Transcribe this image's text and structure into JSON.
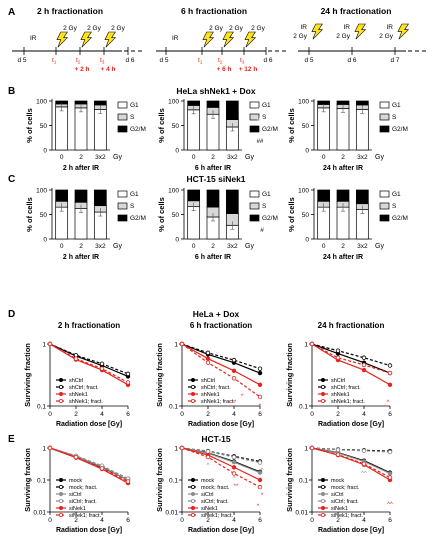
{
  "panelA": {
    "letter": "A",
    "blocks": [
      {
        "title": "2 h fractionation",
        "ir": "IR",
        "day_start": "d 5",
        "day_end": "d 6",
        "gy": [
          "2 Gy",
          "2 Gy",
          "2 Gy"
        ],
        "t": [
          "t",
          "t",
          "t"
        ],
        "subs": [
          "1",
          "2",
          "3"
        ],
        "offsets": [
          "+ 2 h",
          "+ 4 h"
        ]
      },
      {
        "title": "6 h fractionation",
        "ir": "IR",
        "day_start": "d 5",
        "day_end": "d 6",
        "gy": [
          "2 Gy",
          "2 Gy",
          "2 Gy"
        ],
        "t": [
          "t",
          "t",
          "t"
        ],
        "subs": [
          "1",
          "2",
          "3"
        ],
        "offsets": [
          "+ 6 h",
          "+ 12 h"
        ]
      },
      {
        "title": "24 h fractionation",
        "days": [
          "d 5",
          "d 6",
          "d 7"
        ],
        "ir_labels": [
          "IR",
          "IR",
          "IR"
        ],
        "gy": [
          "2 Gy",
          "2 Gy",
          "2 Gy"
        ]
      }
    ]
  },
  "panelB": {
    "letter": "B",
    "title": "HeLa shNek1 + Dox",
    "ylabel": "% of cells",
    "yticks": [
      "0",
      "50",
      "100"
    ],
    "xticks": [
      "0",
      "2",
      "3x2"
    ],
    "unit": "Gy",
    "legend": [
      "G1",
      "S",
      "G2/M"
    ],
    "subtitles": [
      "2 h after IR",
      "6 h after IR",
      "24 h after IR"
    ],
    "marks": [
      "##",
      "##",
      "##",
      "##"
    ]
  },
  "panelC": {
    "letter": "C",
    "title": "HCT-15 siNek1",
    "ylabel": "% of cells",
    "yticks": [
      "0",
      "50",
      "100"
    ],
    "xticks": [
      "0",
      "2",
      "3x2"
    ],
    "unit": "Gy",
    "legend": [
      "G1",
      "S",
      "G2/M"
    ],
    "subtitles": [
      "2 h after IR",
      "6 h after IR",
      "24 h after IR"
    ],
    "marks": [
      "#"
    ]
  },
  "panelD": {
    "letter": "D",
    "title": "HeLa + Dox",
    "ylabel": "Surviving fraction",
    "xlabel": "Radiation dose [Gy]",
    "yticks": [
      "1",
      "0.1"
    ],
    "xticks": [
      "0",
      "2",
      "4",
      "6"
    ],
    "subtitles": [
      "2 h fractionation",
      "6 h fractionation",
      "24 h fractionation"
    ],
    "legend": [
      "shCtrl",
      "shCtrl; fract.",
      "shNek1",
      "shNek1; fract."
    ],
    "marks": [
      "*",
      "**",
      "*",
      "^"
    ]
  },
  "panelE": {
    "letter": "E",
    "title": "HCT-15",
    "ylabel": "Surviving fraction",
    "xlabel": "Radiation dose [Gy]",
    "yticks": [
      "1",
      "0.1",
      "0.01"
    ],
    "xticks": [
      "0",
      "2",
      "4",
      "6"
    ],
    "legend": [
      "mock",
      "mock; fract.",
      "siCtrl",
      "siCtrl; fract.",
      "siNek1",
      "siNek1; fract."
    ],
    "marks": [
      "^",
      "^",
      "**",
      "*",
      "^",
      "*",
      "^^",
      "^^"
    ]
  },
  "colors": {
    "black": "#000000",
    "red": "#e8231d",
    "gray": "#8c8c8c",
    "s_gray": "#d8d8d8",
    "bolt": "#ffe21a"
  },
  "chart_data": [
    {
      "type": "bar",
      "panel": "B",
      "subtitle": "2 h after IR",
      "stacked": true,
      "categories": [
        "0",
        "2",
        "3x2"
      ],
      "ylim": [
        0,
        100
      ],
      "series": [
        {
          "name": "G1",
          "values": [
            88,
            86,
            83
          ]
        },
        {
          "name": "S",
          "values": [
            6,
            8,
            9
          ]
        },
        {
          "name": "G2/M",
          "values": [
            6,
            6,
            8
          ]
        }
      ]
    },
    {
      "type": "bar",
      "panel": "B",
      "subtitle": "6 h after IR",
      "stacked": true,
      "categories": [
        "0",
        "2",
        "3x2"
      ],
      "ylim": [
        0,
        100
      ],
      "series": [
        {
          "name": "G1",
          "values": [
            82,
            73,
            47
          ]
        },
        {
          "name": "S",
          "values": [
            9,
            14,
            15
          ]
        },
        {
          "name": "G2/M",
          "values": [
            9,
            13,
            38
          ]
        }
      ]
    },
    {
      "type": "bar",
      "panel": "B",
      "subtitle": "24 h after IR",
      "stacked": true,
      "categories": [
        "0",
        "2",
        "3x2"
      ],
      "ylim": [
        0,
        100
      ],
      "series": [
        {
          "name": "G1",
          "values": [
            86,
            85,
            83
          ]
        },
        {
          "name": "S",
          "values": [
            7,
            8,
            9
          ]
        },
        {
          "name": "G2/M",
          "values": [
            7,
            7,
            8
          ]
        }
      ]
    },
    {
      "type": "bar",
      "panel": "C",
      "subtitle": "2 h after IR",
      "stacked": true,
      "categories": [
        "0",
        "2",
        "3x2"
      ],
      "ylim": [
        0,
        100
      ],
      "series": [
        {
          "name": "G1",
          "values": [
            65,
            62,
            55
          ]
        },
        {
          "name": "S",
          "values": [
            12,
            13,
            13
          ]
        },
        {
          "name": "G2/M",
          "values": [
            23,
            25,
            32
          ]
        }
      ]
    },
    {
      "type": "bar",
      "panel": "C",
      "subtitle": "6 h after IR",
      "stacked": true,
      "categories": [
        "0",
        "2",
        "3x2"
      ],
      "ylim": [
        0,
        100
      ],
      "series": [
        {
          "name": "G1",
          "values": [
            66,
            45,
            28
          ]
        },
        {
          "name": "S",
          "values": [
            12,
            20,
            24
          ]
        },
        {
          "name": "G2/M",
          "values": [
            22,
            35,
            48
          ]
        }
      ]
    },
    {
      "type": "bar",
      "panel": "C",
      "subtitle": "24 h after IR",
      "stacked": true,
      "categories": [
        "0",
        "2",
        "3x2"
      ],
      "ylim": [
        0,
        100
      ],
      "series": [
        {
          "name": "G1",
          "values": [
            65,
            65,
            60
          ]
        },
        {
          "name": "S",
          "values": [
            12,
            12,
            12
          ]
        },
        {
          "name": "G2/M",
          "values": [
            23,
            23,
            28
          ]
        }
      ]
    },
    {
      "type": "line",
      "panel": "D",
      "subtitle": "2 h fractionation",
      "yscale": "log",
      "ylim": [
        0.1,
        1
      ],
      "x": [
        0,
        2,
        4,
        6
      ],
      "series": [
        {
          "name": "shCtrl",
          "values": [
            1,
            0.64,
            0.45,
            0.3
          ]
        },
        {
          "name": "shCtrl; fract.",
          "values": [
            1,
            0.66,
            0.48,
            0.33
          ]
        },
        {
          "name": "shNek1",
          "values": [
            1,
            0.56,
            0.38,
            0.22
          ]
        },
        {
          "name": "shNek1; fract.",
          "values": [
            1,
            0.58,
            0.4,
            0.24
          ]
        }
      ]
    },
    {
      "type": "line",
      "panel": "D",
      "subtitle": "6 h fractionation",
      "yscale": "log",
      "ylim": [
        0.1,
        1
      ],
      "x": [
        0,
        2,
        4,
        6
      ],
      "series": [
        {
          "name": "shCtrl",
          "values": [
            1,
            0.68,
            0.5,
            0.34
          ]
        },
        {
          "name": "shCtrl; fract.",
          "values": [
            1,
            0.72,
            0.55,
            0.4
          ]
        },
        {
          "name": "shNek1",
          "values": [
            1,
            0.58,
            0.37,
            0.22
          ]
        },
        {
          "name": "shNek1; fract.",
          "values": [
            1,
            0.5,
            0.28,
            0.14
          ]
        }
      ]
    },
    {
      "type": "line",
      "panel": "D",
      "subtitle": "24 h fractionation",
      "yscale": "log",
      "ylim": [
        0.1,
        1
      ],
      "x": [
        0,
        2,
        4,
        6
      ],
      "series": [
        {
          "name": "shCtrl",
          "values": [
            1,
            0.7,
            0.5,
            0.34
          ]
        },
        {
          "name": "shCtrl; fract.",
          "values": [
            1,
            0.78,
            0.6,
            0.45
          ]
        },
        {
          "name": "shNek1",
          "values": [
            1,
            0.55,
            0.38,
            0.22
          ]
        },
        {
          "name": "shNek1; fract.",
          "values": [
            1,
            0.6,
            0.46,
            0.34
          ]
        }
      ]
    },
    {
      "type": "line",
      "panel": "E",
      "subtitle": "2 h fractionation",
      "yscale": "log",
      "ylim": [
        0.01,
        1
      ],
      "x": [
        0,
        2,
        4,
        6
      ],
      "series": [
        {
          "name": "mock",
          "values": [
            1,
            0.55,
            0.25,
            0.1
          ]
        },
        {
          "name": "mock; fract.",
          "values": [
            1,
            0.56,
            0.27,
            0.11
          ]
        },
        {
          "name": "siCtrl",
          "values": [
            1,
            0.55,
            0.26,
            0.1
          ]
        },
        {
          "name": "siCtrl; fract.",
          "values": [
            1,
            0.57,
            0.28,
            0.11
          ]
        },
        {
          "name": "siNek1",
          "values": [
            1,
            0.5,
            0.22,
            0.08
          ]
        },
        {
          "name": "siNek1; fract.",
          "values": [
            1,
            0.52,
            0.23,
            0.09
          ]
        }
      ]
    },
    {
      "type": "line",
      "panel": "E",
      "subtitle": "6 h fractionation",
      "yscale": "log",
      "ylim": [
        0.01,
        1
      ],
      "x": [
        0,
        2,
        4,
        6
      ],
      "series": [
        {
          "name": "mock",
          "values": [
            1,
            0.7,
            0.38,
            0.18
          ]
        },
        {
          "name": "mock; fract.",
          "values": [
            1,
            0.8,
            0.55,
            0.38
          ]
        },
        {
          "name": "siCtrl",
          "values": [
            1,
            0.68,
            0.36,
            0.17
          ]
        },
        {
          "name": "siCtrl; fract.",
          "values": [
            1,
            0.78,
            0.52,
            0.35
          ]
        },
        {
          "name": "siNek1",
          "values": [
            1,
            0.6,
            0.25,
            0.1
          ]
        },
        {
          "name": "siNek1; fract.",
          "values": [
            1,
            0.52,
            0.16,
            0.06
          ]
        }
      ]
    },
    {
      "type": "line",
      "panel": "E",
      "subtitle": "24 h fractionation",
      "yscale": "log",
      "ylim": [
        0.01,
        1
      ],
      "x": [
        0,
        2,
        4,
        6
      ],
      "series": [
        {
          "name": "mock",
          "values": [
            1,
            0.72,
            0.4,
            0.17
          ]
        },
        {
          "name": "mock; fract.",
          "values": [
            1,
            0.9,
            0.85,
            0.8
          ]
        },
        {
          "name": "siCtrl",
          "values": [
            1,
            0.7,
            0.38,
            0.16
          ]
        },
        {
          "name": "siCtrl; fract.",
          "values": [
            1,
            0.88,
            0.82,
            0.75
          ]
        },
        {
          "name": "siNek1",
          "values": [
            1,
            0.6,
            0.3,
            0.1
          ]
        },
        {
          "name": "siNek1; fract.",
          "values": [
            1,
            0.62,
            0.32,
            0.12
          ]
        }
      ]
    }
  ]
}
